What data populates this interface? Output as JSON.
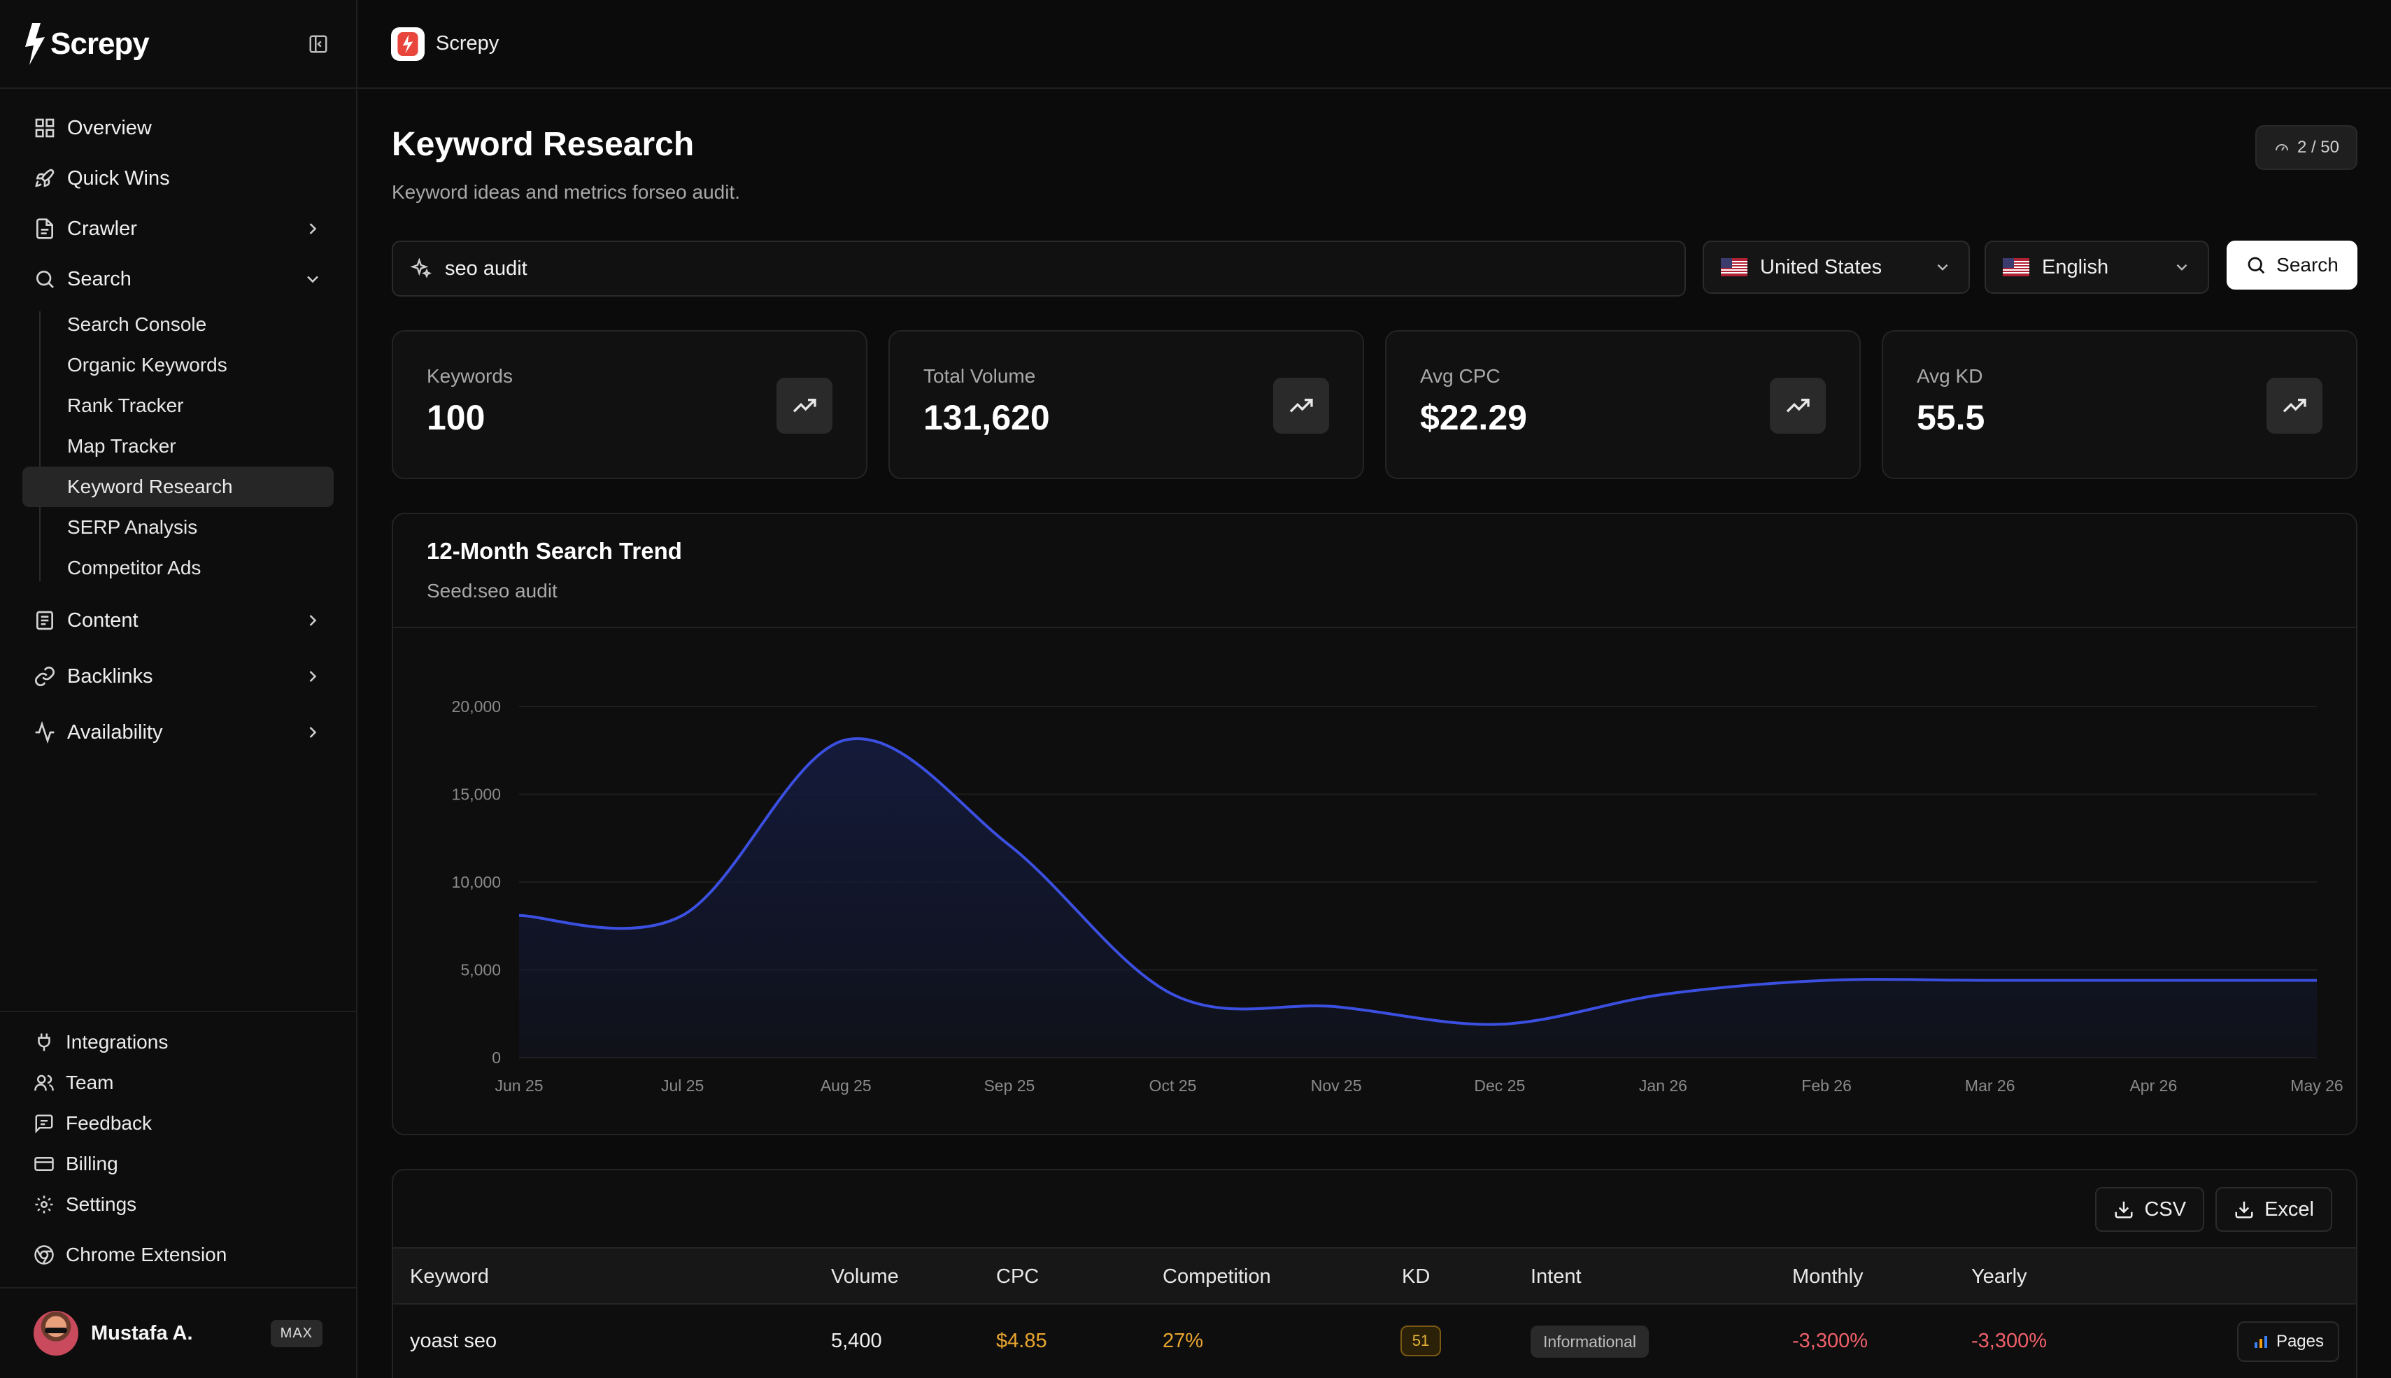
{
  "brand": {
    "name": "Screpy"
  },
  "topbar": {
    "title": "Screpy"
  },
  "sidebar": {
    "items": [
      {
        "label": "Overview"
      },
      {
        "label": "Quick Wins"
      },
      {
        "label": "Crawler"
      },
      {
        "label": "Search"
      },
      {
        "label": "Content"
      },
      {
        "label": "Backlinks"
      },
      {
        "label": "Availability"
      }
    ],
    "search_sub": [
      {
        "label": "Search Console"
      },
      {
        "label": "Organic Keywords"
      },
      {
        "label": "Rank Tracker"
      },
      {
        "label": "Map Tracker"
      },
      {
        "label": "Keyword Research",
        "active": true
      },
      {
        "label": "SERP Analysis"
      },
      {
        "label": "Competitor Ads"
      }
    ],
    "bottom": [
      {
        "label": "Integrations"
      },
      {
        "label": "Team"
      },
      {
        "label": "Feedback"
      },
      {
        "label": "Billing"
      },
      {
        "label": "Settings"
      },
      {
        "label": "Chrome Extension"
      }
    ],
    "user": {
      "name": "Mustafa A.",
      "plan": "MAX"
    }
  },
  "page": {
    "title": "Keyword Research",
    "subtitle": "Keyword ideas and metrics forseo audit.",
    "quota": "2 / 50"
  },
  "search": {
    "value": "seo audit",
    "country": "United States",
    "language": "English",
    "button": "Search"
  },
  "stats": [
    {
      "label": "Keywords",
      "value": "100"
    },
    {
      "label": "Total Volume",
      "value": "131,620"
    },
    {
      "label": "Avg CPC",
      "value": "$22.29"
    },
    {
      "label": "Avg KD",
      "value": "55.5"
    }
  ],
  "trend": {
    "title": "12-Month Search Trend",
    "seed": "Seed:seo audit"
  },
  "chart_data": {
    "type": "area",
    "title": "12-Month Search Trend",
    "x": [
      "Jun 25",
      "Jul 25",
      "Aug 25",
      "Sep 25",
      "Oct 25",
      "Nov 25",
      "Dec 25",
      "Jan 26",
      "Feb 26",
      "Mar 26",
      "Apr 26",
      "May 26"
    ],
    "series": [
      {
        "values": [
          8100,
          8100,
          18100,
          12100,
          3600,
          2900,
          1900,
          3600,
          4400,
          4400,
          4400,
          4400
        ]
      }
    ],
    "yticks": [
      "0",
      "5,000",
      "10,000",
      "15,000",
      "20,000"
    ],
    "ylim": [
      0,
      20000
    ],
    "grid": true,
    "colors": {
      "line": "#3b4fe0",
      "fill": "#141a3a"
    }
  },
  "table": {
    "export_csv": "CSV",
    "export_excel": "Excel",
    "headers": [
      "Keyword",
      "Volume",
      "CPC",
      "Competition",
      "KD",
      "Intent",
      "Monthly",
      "Yearly"
    ],
    "rows": [
      {
        "keyword": "yoast seo",
        "volume": "5,400",
        "cpc": "$4.85",
        "competition": "27%",
        "kd": "51",
        "intent": "Informational",
        "monthly": "-3,300%",
        "yearly": "-3,300%",
        "action": "Pages"
      }
    ]
  },
  "colors": {
    "accent": "#3b4fe0",
    "cpc": "#e8a530",
    "negative": "#f0606a",
    "kd": "#e6b23a"
  }
}
